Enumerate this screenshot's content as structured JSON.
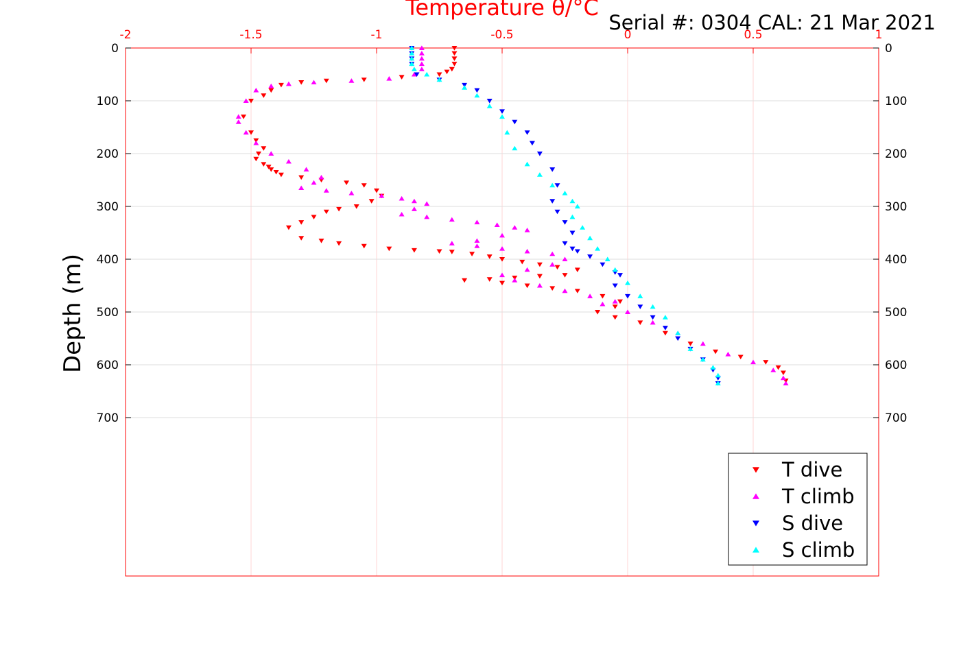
{
  "chart_data": {
    "type": "scatter",
    "title": "Temperature θ/°C",
    "annotation": "Serial #: 0304  CAL: 21 Mar 2021",
    "xlabel": "Temperature θ/°C",
    "ylabel": "Depth (m)",
    "xlim": [
      -2,
      1
    ],
    "ylim": [
      0,
      1000
    ],
    "y_reversed": true,
    "x_axis_position": "top",
    "x_ticks": [
      "-2",
      "-1.5",
      "-1",
      "-0.5",
      "0",
      "0.5",
      "1"
    ],
    "x_tick_values": [
      -2,
      -1.5,
      -1,
      -0.5,
      0,
      0.5,
      1
    ],
    "y_ticks": [
      "0",
      "100",
      "200",
      "300",
      "400",
      "500",
      "600",
      "700"
    ],
    "y_tick_values": [
      0,
      100,
      200,
      300,
      400,
      500,
      600,
      700
    ],
    "grid": true,
    "legend_position": "bottom-right",
    "series": [
      {
        "name": "T dive",
        "marker": "triangle-down",
        "color": "#ff0000",
        "x": [
          -0.69,
          -0.69,
          -0.69,
          -0.69,
          -0.7,
          -0.72,
          -0.75,
          -0.9,
          -1.05,
          -1.2,
          -1.3,
          -1.38,
          -1.42,
          -1.45,
          -1.5,
          -1.53,
          -1.5,
          -1.48,
          -1.45,
          -1.47,
          -1.48,
          -1.45,
          -1.43,
          -1.42,
          -1.4,
          -1.38,
          -1.3,
          -1.22,
          -1.12,
          -1.05,
          -1.0,
          -0.98,
          -1.02,
          -1.08,
          -1.15,
          -1.2,
          -1.25,
          -1.3,
          -1.35,
          -1.3,
          -1.22,
          -1.15,
          -1.05,
          -0.95,
          -0.85,
          -0.75,
          -0.7,
          -0.62,
          -0.55,
          -0.5,
          -0.42,
          -0.35,
          -0.28,
          -0.2,
          -0.25,
          -0.35,
          -0.45,
          -0.55,
          -0.65,
          -0.5,
          -0.4,
          -0.3,
          -0.2,
          -0.1,
          -0.03,
          -0.05,
          -0.12,
          -0.05,
          0.05,
          0.15,
          0.25,
          0.35,
          0.45,
          0.55,
          0.6,
          0.62,
          0.63
        ],
        "y": [
          0,
          10,
          20,
          30,
          40,
          45,
          50,
          55,
          60,
          62,
          65,
          70,
          80,
          90,
          100,
          130,
          160,
          175,
          190,
          200,
          210,
          220,
          225,
          230,
          235,
          240,
          245,
          250,
          255,
          260,
          270,
          280,
          290,
          300,
          305,
          310,
          320,
          330,
          340,
          360,
          365,
          370,
          375,
          380,
          383,
          385,
          386,
          390,
          395,
          400,
          405,
          410,
          415,
          420,
          430,
          432,
          435,
          438,
          440,
          445,
          450,
          455,
          460,
          470,
          480,
          490,
          500,
          510,
          520,
          540,
          560,
          575,
          585,
          595,
          605,
          615,
          630
        ]
      },
      {
        "name": "T climb",
        "marker": "triangle-up",
        "color": "#ff00ff",
        "x": [
          -0.82,
          -0.82,
          -0.82,
          -0.82,
          -0.82,
          -0.85,
          -0.95,
          -1.1,
          -1.25,
          -1.35,
          -1.42,
          -1.48,
          -1.52,
          -1.55,
          -1.55,
          -1.52,
          -1.48,
          -1.42,
          -1.35,
          -1.28,
          -1.22,
          -1.25,
          -1.3,
          -1.2,
          -1.1,
          -0.98,
          -0.9,
          -0.85,
          -0.8,
          -0.85,
          -0.9,
          -0.8,
          -0.7,
          -0.6,
          -0.52,
          -0.45,
          -0.4,
          -0.5,
          -0.6,
          -0.7,
          -0.6,
          -0.5,
          -0.4,
          -0.3,
          -0.25,
          -0.3,
          -0.4,
          -0.5,
          -0.45,
          -0.35,
          -0.25,
          -0.15,
          -0.05,
          -0.1,
          0.0,
          0.1,
          0.2,
          0.3,
          0.4,
          0.5,
          0.58,
          0.62,
          0.63
        ],
        "y": [
          0,
          10,
          20,
          30,
          40,
          50,
          58,
          62,
          65,
          68,
          72,
          80,
          100,
          130,
          140,
          160,
          180,
          200,
          215,
          230,
          245,
          255,
          265,
          270,
          275,
          280,
          285,
          290,
          295,
          305,
          315,
          320,
          325,
          330,
          335,
          340,
          345,
          355,
          365,
          370,
          375,
          380,
          385,
          390,
          400,
          410,
          420,
          430,
          440,
          450,
          460,
          470,
          480,
          485,
          500,
          520,
          540,
          560,
          580,
          595,
          610,
          625,
          635
        ]
      },
      {
        "name": "S dive",
        "marker": "triangle-down",
        "color": "#0000ff",
        "x": [
          -0.86,
          -0.86,
          -0.86,
          -0.86,
          -0.84,
          -0.75,
          -0.65,
          -0.6,
          -0.55,
          -0.5,
          -0.45,
          -0.4,
          -0.38,
          -0.35,
          -0.3,
          -0.28,
          -0.3,
          -0.28,
          -0.25,
          -0.22,
          -0.25,
          -0.22,
          -0.2,
          -0.15,
          -0.1,
          -0.05,
          -0.03,
          -0.05,
          0.0,
          0.05,
          0.1,
          0.15,
          0.2,
          0.25,
          0.3,
          0.34,
          0.36,
          0.36
        ],
        "y": [
          0,
          10,
          20,
          30,
          50,
          60,
          70,
          80,
          100,
          120,
          140,
          160,
          180,
          200,
          230,
          260,
          290,
          310,
          330,
          350,
          370,
          380,
          385,
          395,
          410,
          425,
          430,
          450,
          470,
          490,
          510,
          530,
          550,
          570,
          590,
          610,
          625,
          635
        ]
      },
      {
        "name": "S climb",
        "marker": "triangle-up",
        "color": "#00ffff",
        "x": [
          -0.86,
          -0.86,
          -0.86,
          -0.86,
          -0.85,
          -0.8,
          -0.75,
          -0.65,
          -0.6,
          -0.55,
          -0.5,
          -0.48,
          -0.45,
          -0.4,
          -0.35,
          -0.3,
          -0.25,
          -0.22,
          -0.2,
          -0.22,
          -0.18,
          -0.15,
          -0.12,
          -0.08,
          -0.05,
          0.0,
          0.05,
          0.1,
          0.15,
          0.2,
          0.25,
          0.3,
          0.34,
          0.36,
          0.36
        ],
        "y": [
          0,
          10,
          20,
          30,
          40,
          50,
          60,
          75,
          90,
          110,
          130,
          160,
          190,
          220,
          240,
          260,
          275,
          290,
          300,
          320,
          340,
          360,
          380,
          400,
          420,
          445,
          470,
          490,
          510,
          540,
          570,
          590,
          605,
          620,
          635
        ]
      }
    ]
  }
}
